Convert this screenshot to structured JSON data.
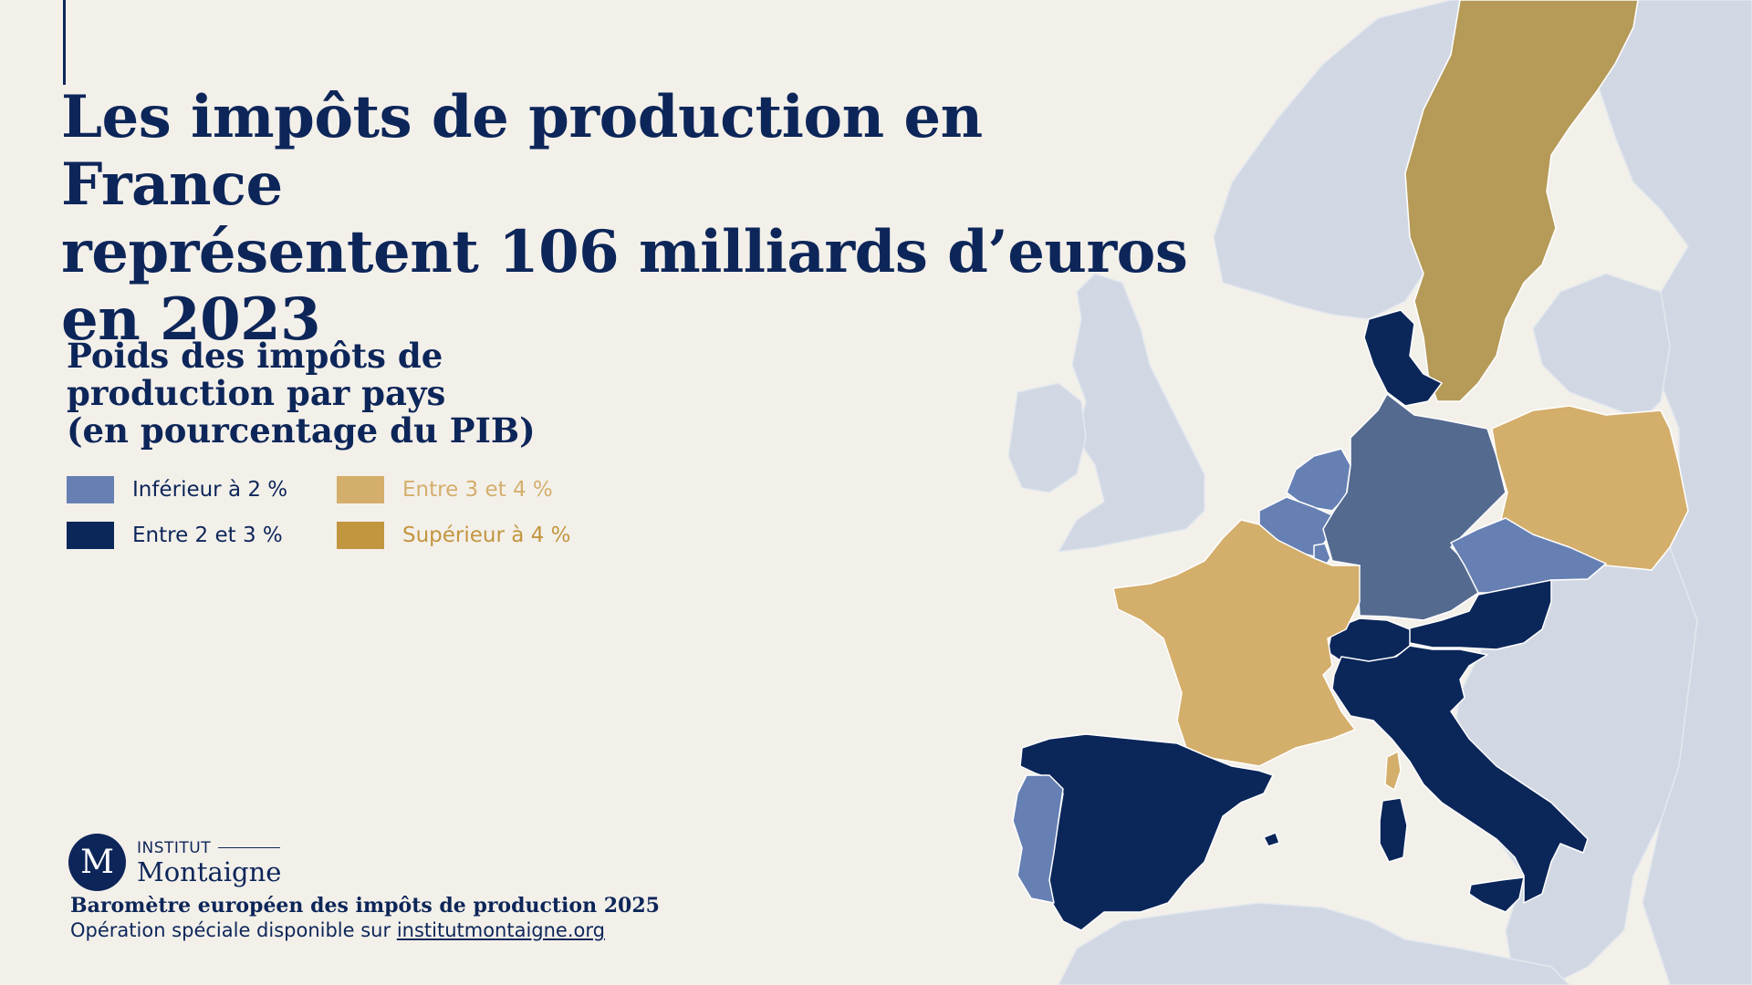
{
  "title_lines": [
    "Les impôts de production en France",
    "représentent 106 milliards d’euros",
    "en 2023"
  ],
  "legend": {
    "title_lines": [
      "Poids des impôts de",
      "production par pays",
      "(en pourcentage du PIB)"
    ],
    "items": [
      {
        "label": "Inférieur à 2 %",
        "color": "#6680b3",
        "text_color": "#0d2659"
      },
      {
        "label": "Entre 2 et 3 %",
        "color": "#0b2659",
        "text_color": "#0d2659"
      },
      {
        "label": "Entre 3 et 4 %",
        "color": "#d4ae6b",
        "text_color": "#d4ae6b"
      },
      {
        "label": "Supérieur à 4 %",
        "color": "#c2963f",
        "text_color": "#c2963f"
      }
    ]
  },
  "map": {
    "countries": [
      {
        "name": "Suède",
        "category": 3
      },
      {
        "name": "Danemark",
        "category": 1
      },
      {
        "name": "Pays-Bas",
        "category": 0
      },
      {
        "name": "Belgique",
        "category": 0
      },
      {
        "name": "Luxembourg",
        "category": 0
      },
      {
        "name": "Allemagne",
        "category": 0
      },
      {
        "name": "Pologne",
        "category": 2
      },
      {
        "name": "Tchéquie",
        "category": 0
      },
      {
        "name": "Autriche",
        "category": 1
      },
      {
        "name": "Suisse",
        "category": 1
      },
      {
        "name": "France",
        "category": 2
      },
      {
        "name": "Italie",
        "category": 1
      },
      {
        "name": "Espagne",
        "category": 1
      },
      {
        "name": "Portugal",
        "category": 0
      }
    ],
    "colors": {
      "background_land": "#d1d8e3",
      "sweden_fill": "#b59a58",
      "germany_fill": "#546a8f",
      "sea": "#f3f0ea",
      "accent_line": "#0d2659"
    }
  },
  "footer": {
    "logo_letter": "M",
    "logo_top": "INSTITUT",
    "logo_name": "Montaigne",
    "title": "Baromètre européen des impôts de production 2025",
    "sub_prefix": "Opération spéciale disponible sur ",
    "sub_link": "institutmontaigne.org"
  }
}
